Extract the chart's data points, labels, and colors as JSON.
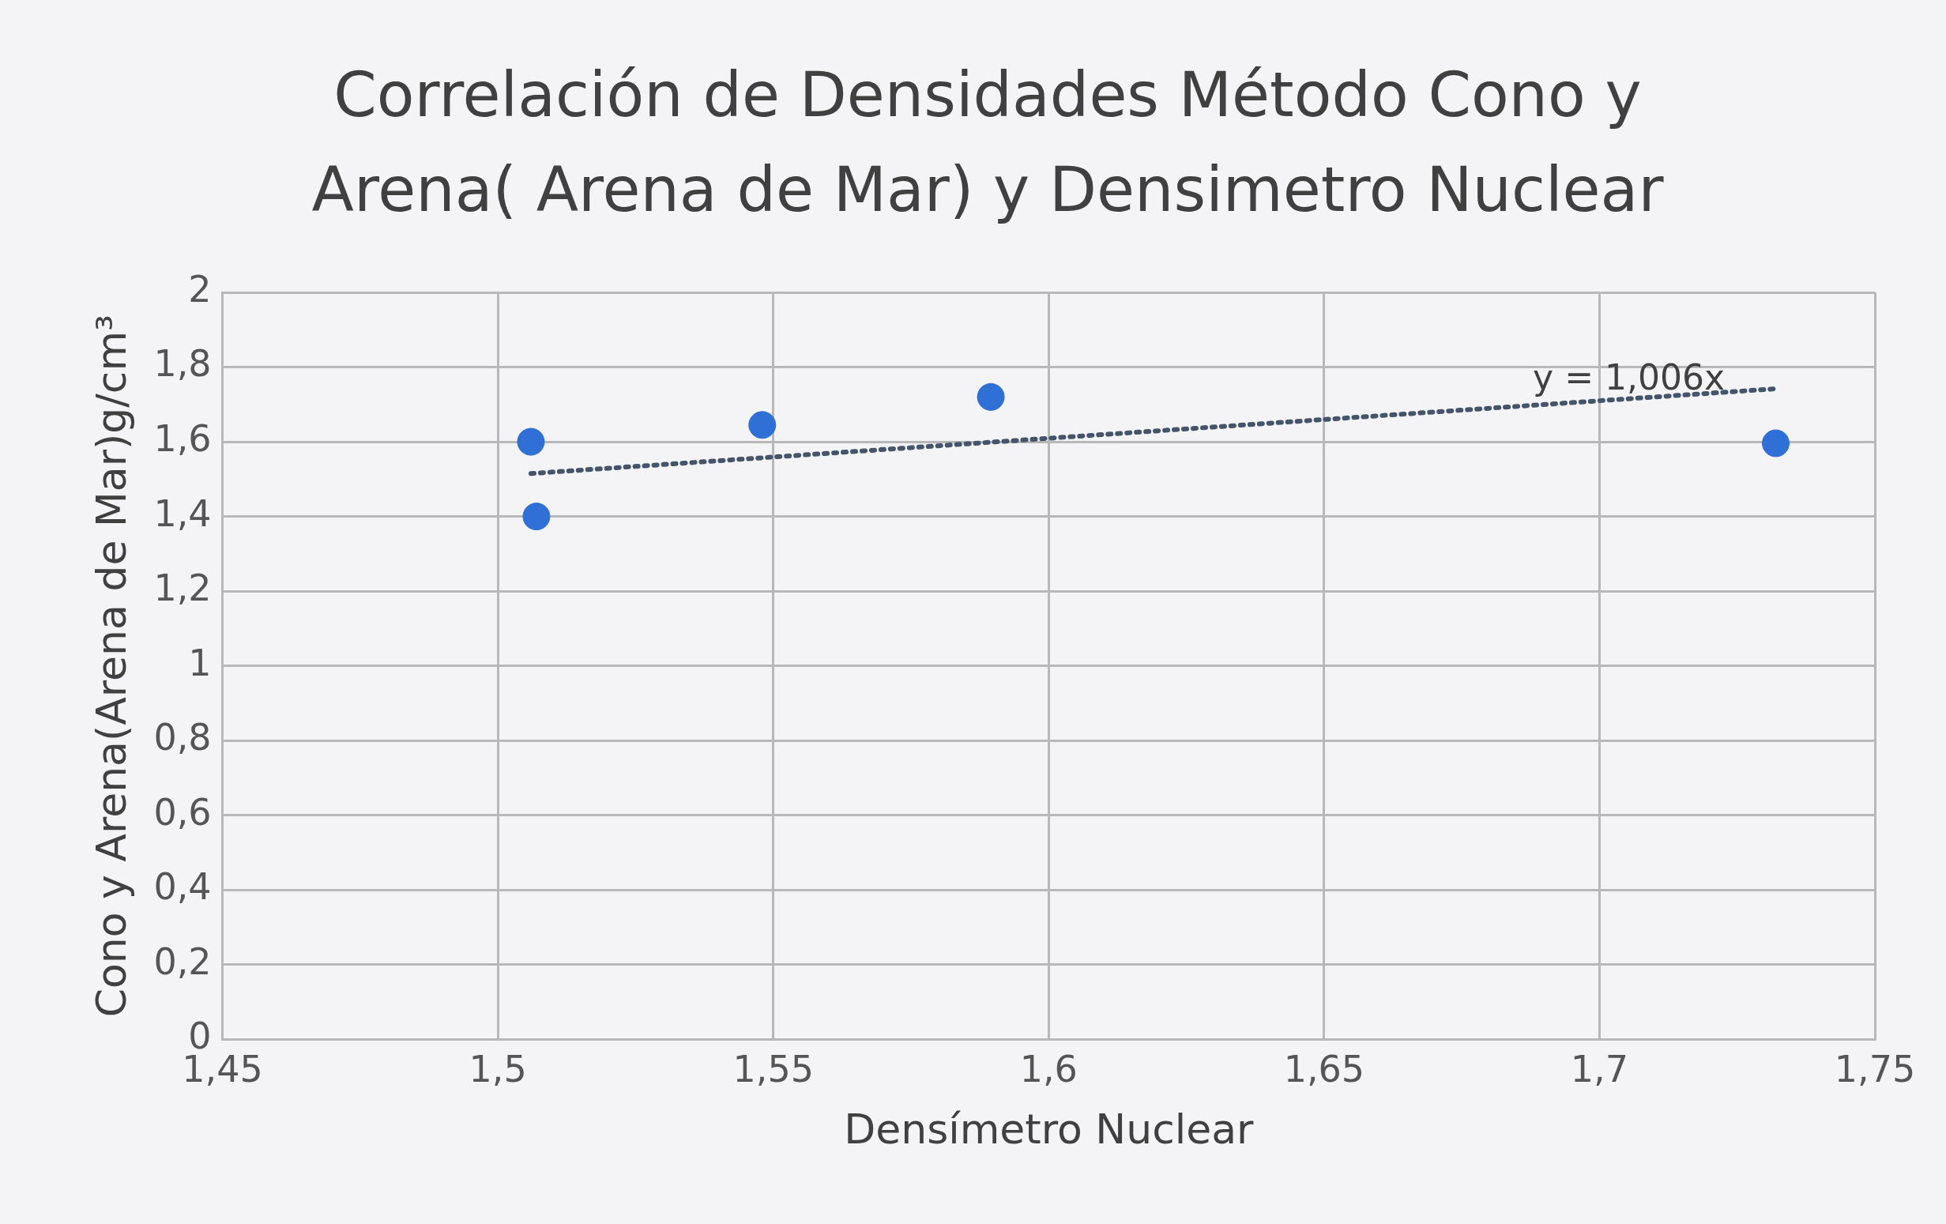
{
  "chart_data": {
    "type": "scatter",
    "title": "Correlación de Densidades Método Cono y Arena( Arena de Mar) y Densimetro Nuclear",
    "xlabel": "Densímetro Nuclear",
    "ylabel": "Cono y Arena(Arena de Mar)g/cm³",
    "series": [
      {
        "type": "scatter",
        "color": "#2f6fd6",
        "marker": "circle",
        "x": [
          1.506,
          1.507,
          1.548,
          1.5895,
          1.732
        ],
        "values": [
          1.6,
          1.4,
          1.645,
          1.72,
          1.596
        ]
      },
      {
        "type": "line",
        "color": "#44546a",
        "marker": "none",
        "line_style": "dotted",
        "x": [
          1.506,
          1.732
        ],
        "values": [
          1.515,
          1.742
        ]
      }
    ],
    "xlim": [
      1.45,
      1.75
    ],
    "xticks": [
      {
        "value": 1.45,
        "label": "1,45"
      },
      {
        "value": 1.5,
        "label": "1,5"
      },
      {
        "value": 1.55,
        "label": "1,55"
      },
      {
        "value": 1.6,
        "label": "1,6"
      },
      {
        "value": 1.65,
        "label": "1,65"
      },
      {
        "value": 1.7,
        "label": "1,7"
      },
      {
        "value": 1.75,
        "label": "1,75"
      }
    ],
    "ylim": [
      0,
      2
    ],
    "yticks": [
      0,
      {
        "value": 0.2,
        "label": "0,2"
      },
      {
        "value": 0.4,
        "label": "0,4"
      },
      {
        "value": 0.6,
        "label": "0,6"
      },
      {
        "value": 0.8,
        "label": "0,8"
      },
      1,
      {
        "value": 1.2,
        "label": "1,2"
      },
      {
        "value": 1.4,
        "label": "1,4"
      },
      {
        "value": 1.6,
        "label": "1,6"
      },
      {
        "value": 1.8,
        "label": "1,8"
      },
      2
    ],
    "annotations": [
      "y = 1,006x"
    ],
    "grid": true,
    "legend": false
  }
}
